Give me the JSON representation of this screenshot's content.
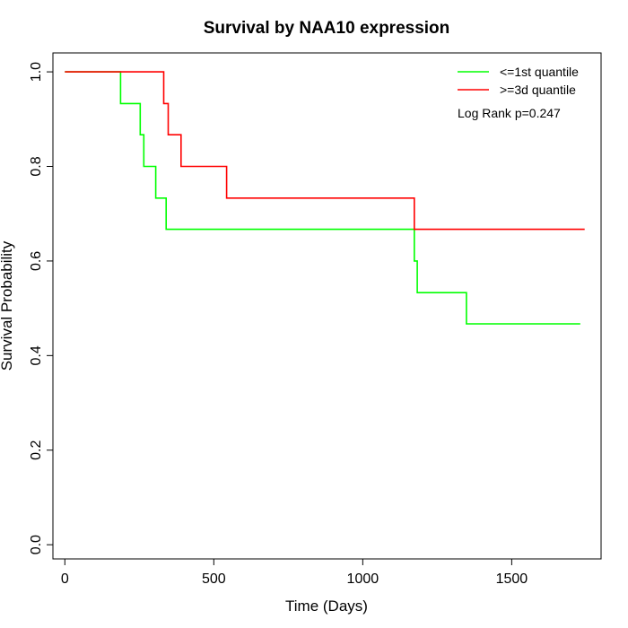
{
  "chart_data": {
    "type": "line",
    "title": "Survival by NAA10 expression",
    "xlabel": "Time (Days)",
    "ylabel": "Survival Probability",
    "xlim": [
      -40,
      1800
    ],
    "ylim": [
      -0.03,
      1.04
    ],
    "x_ticks": [
      0,
      500,
      1000,
      1500
    ],
    "y_ticks": [
      0.0,
      0.2,
      0.4,
      0.6,
      0.8,
      1.0
    ],
    "x_tick_labels": [
      "0",
      "500",
      "1000",
      "1500"
    ],
    "y_tick_labels": [
      "0.0",
      "0.2",
      "0.4",
      "0.6",
      "0.8",
      "1.0"
    ],
    "grid": false,
    "legend_position": "top-right",
    "annotation": "Log Rank p=0.247",
    "series": [
      {
        "name": "<=1st quantile",
        "color": "#00ff00",
        "steps": [
          [
            0,
            1.0
          ],
          [
            187,
            0.933
          ],
          [
            253,
            0.867
          ],
          [
            265,
            0.8
          ],
          [
            305,
            0.733
          ],
          [
            340,
            0.667
          ],
          [
            1173,
            0.6
          ],
          [
            1183,
            0.533
          ],
          [
            1348,
            0.467
          ],
          [
            1730,
            0.467
          ]
        ]
      },
      {
        "name": ">=3d quantile",
        "color": "#ff0000",
        "steps": [
          [
            0,
            1.0
          ],
          [
            332,
            0.933
          ],
          [
            347,
            0.867
          ],
          [
            390,
            0.8
          ],
          [
            543,
            0.733
          ],
          [
            1173,
            0.667
          ],
          [
            1745,
            0.667
          ]
        ]
      }
    ]
  }
}
